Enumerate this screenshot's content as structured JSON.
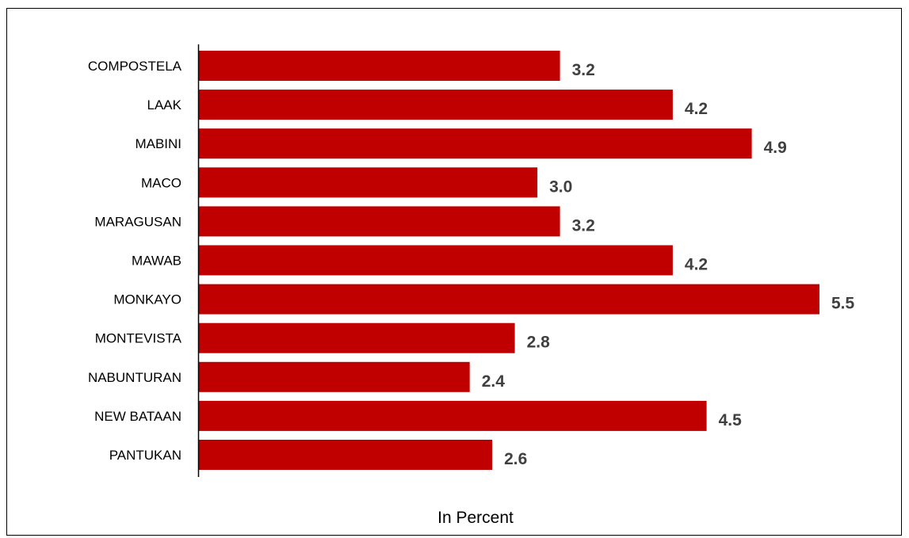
{
  "chart_data": {
    "type": "bar",
    "orientation": "horizontal",
    "categories": [
      "COMPOSTELA",
      "LAAK",
      "MABINI",
      "MACO",
      "MARAGUSAN",
      "MAWAB",
      "MONKAYO",
      "MONTEVISTA",
      "NABUNTURAN",
      "NEW BATAAN",
      "PANTUKAN"
    ],
    "values": [
      3.2,
      4.2,
      4.9,
      3.0,
      3.2,
      4.2,
      5.5,
      2.8,
      2.4,
      4.5,
      2.6
    ],
    "value_labels": [
      "3.2",
      "4.2",
      "4.9",
      "3.0",
      "3.2",
      "4.2",
      "5.5",
      "2.8",
      "2.4",
      "4.5",
      "2.6"
    ],
    "title": "",
    "xlabel": "In Percent",
    "ylabel": "",
    "xlim": [
      0,
      5.5
    ],
    "grid": false,
    "legend": "none",
    "bar_color": "#c00000",
    "value_label_color": "#404040"
  }
}
